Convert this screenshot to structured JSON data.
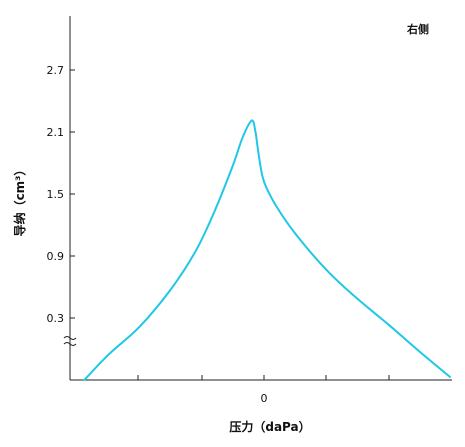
{
  "chart_data": {
    "type": "line",
    "corner_label": "右侧",
    "xlabel": "压力（daPa）",
    "ylabel": "导纳（cm³）",
    "x_ticks": [
      {
        "value": 0,
        "label": "0"
      }
    ],
    "y_ticks": [
      {
        "value": 0.3,
        "label": "0.3"
      },
      {
        "value": 0.9,
        "label": "0.9"
      },
      {
        "value": 1.5,
        "label": "1.5"
      },
      {
        "value": 2.1,
        "label": "2.1"
      },
      {
        "value": 2.7,
        "label": "2.7"
      }
    ],
    "y_axis_break": true,
    "grid": false,
    "colors": {
      "series": "#1ec8e6",
      "axis": "#222222"
    },
    "series": [
      {
        "x": [
          -290,
          -250,
          -200,
          -150,
          -110,
          -80,
          -50,
          -35,
          -20,
          -14,
          -10,
          -6,
          -2,
          4,
          20,
          50,
          100,
          150,
          200,
          250,
          300
        ],
        "y": [
          -0.3,
          -0.05,
          0.22,
          0.58,
          0.95,
          1.33,
          1.78,
          2.04,
          2.21,
          2.11,
          1.94,
          1.78,
          1.66,
          1.56,
          1.38,
          1.12,
          0.77,
          0.49,
          0.24,
          -0.02,
          -0.27
        ]
      }
    ]
  }
}
